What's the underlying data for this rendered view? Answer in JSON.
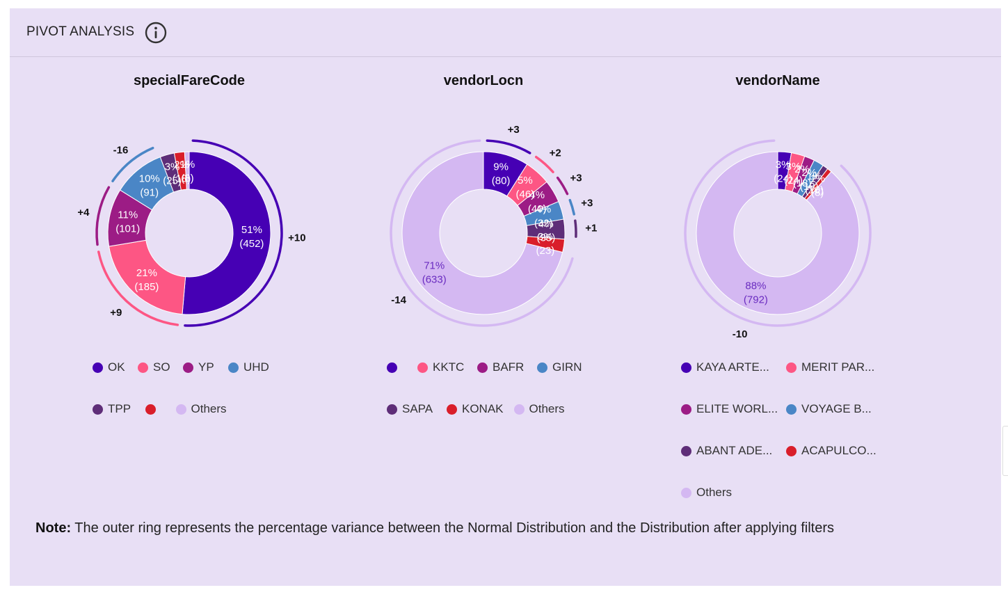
{
  "header": {
    "title": "PIVOT ANALYSIS",
    "info_icon": "info-circle-icon"
  },
  "colors": {
    "panel_bg": "#e8dff5",
    "others": "#d4b8f2",
    "ok": "#4600b4",
    "so": "#fd5684",
    "yp": "#9c1c85",
    "uhd": "#4a86c6",
    "tpp": "#5e2d78",
    "konak": "#d91e2a"
  },
  "chart_data": [
    {
      "type": "pie",
      "title": "specialFareCode",
      "slices": [
        {
          "label": "OK",
          "legend": "OK",
          "value": 452,
          "percent": "51%",
          "color": "#4600b4",
          "text_color": "#ffffff"
        },
        {
          "label": "SO",
          "legend": "SO",
          "value": 185,
          "percent": "21%",
          "color": "#fd5684",
          "text_color": "#ffffff"
        },
        {
          "label": "YP",
          "legend": "YP",
          "value": 101,
          "percent": "11%",
          "color": "#9c1c85",
          "text_color": "#ffffff"
        },
        {
          "label": "UHD",
          "legend": "UHD",
          "value": 91,
          "percent": "10%",
          "color": "#4a86c6",
          "text_color": "#ffffff"
        },
        {
          "label": "TPP",
          "legend": "TPP",
          "value": 25,
          "percent": "3%",
          "color": "#5e2d78",
          "text_color": "#ffffff"
        },
        {
          "label": "",
          "legend": "",
          "value": 18,
          "percent": "2%",
          "color": "#d91e2a",
          "text_color": "#ffffff"
        },
        {
          "label": "Others",
          "legend": "Others",
          "value": 8,
          "percent": "1%",
          "color": "#d4b8f2",
          "text_color": "#ffffff"
        }
      ],
      "variance": [
        {
          "slice": 0,
          "label": "+10"
        },
        {
          "slice": 1,
          "label": "+9"
        },
        {
          "slice": 2,
          "label": "+4"
        },
        {
          "slice": 3,
          "label": "-16"
        }
      ]
    },
    {
      "type": "pie",
      "title": "vendorLocn",
      "slices": [
        {
          "label": "",
          "legend": "",
          "value": 80,
          "percent": "9%",
          "color": "#4600b4",
          "text_color": "#ffffff"
        },
        {
          "label": "KKTC",
          "legend": "KKTC",
          "value": 46,
          "percent": "5%",
          "color": "#fd5684",
          "text_color": "#ffffff"
        },
        {
          "label": "BAFR",
          "legend": "BAFR",
          "value": 40,
          "percent": "4%",
          "color": "#9c1c85",
          "text_color": "#ffffff"
        },
        {
          "label": "GIRN",
          "legend": "GIRN",
          "value": 32,
          "percent": "4%",
          "color": "#4a86c6",
          "text_color": "#ffffff"
        },
        {
          "label": "SAPA",
          "legend": "SAPA",
          "value": 35,
          "percent": "4%",
          "color": "#5e2d78",
          "text_color": "#ffffff"
        },
        {
          "label": "KONAK",
          "legend": "KONAK",
          "value": 23,
          "percent": "3%",
          "color": "#d91e2a",
          "text_color": "#ffffff"
        },
        {
          "label": "Others",
          "legend": "Others",
          "value": 633,
          "percent": "71%",
          "color": "#d4b8f2",
          "text_color": "#6a2cc0"
        }
      ],
      "variance": [
        {
          "slice": 0,
          "label": "+3"
        },
        {
          "slice": 1,
          "label": "+2"
        },
        {
          "slice": 2,
          "label": "+3"
        },
        {
          "slice": 3,
          "label": "+3"
        },
        {
          "slice": 4,
          "label": "+1"
        },
        {
          "slice": 6,
          "label": "-14"
        }
      ]
    },
    {
      "type": "pie",
      "title": "vendorName",
      "slices": [
        {
          "label": "KAYA ARTE...",
          "legend": "KAYA ARTE...",
          "value": 24,
          "percent": "3%",
          "color": "#4600b4",
          "text_color": "#ffffff"
        },
        {
          "label": "MERIT PAR...",
          "legend": "MERIT PAR...",
          "value": 24,
          "percent": "3%",
          "color": "#fd5684",
          "text_color": "#ffffff"
        },
        {
          "label": "ELITE WORL...",
          "legend": "ELITE WORL...",
          "value": 18,
          "percent": "2%",
          "color": "#9c1c85",
          "text_color": "#ffffff"
        },
        {
          "label": "VOYAGE B...",
          "legend": "VOYAGE B...",
          "value": 18,
          "percent": "2%",
          "color": "#4a86c6",
          "text_color": "#ffffff"
        },
        {
          "label": "ABANT ADE...",
          "legend": "ABANT ADE...",
          "value": 10,
          "percent": "1%",
          "color": "#5e2d78",
          "text_color": "#ffffff"
        },
        {
          "label": "ACAPULCO...",
          "legend": "ACAPULCO...",
          "value": 8,
          "percent": "1%",
          "color": "#d91e2a",
          "text_color": "#ffffff"
        },
        {
          "label": "Others",
          "legend": "Others",
          "value": 792,
          "percent": "88%",
          "color": "#d4b8f2",
          "text_color": "#6a2cc0"
        }
      ],
      "variance": [
        {
          "slice": 6,
          "label": "-10"
        }
      ]
    }
  ],
  "note": {
    "label": "Note:",
    "text": " The outer ring represents the percentage variance between the Normal Distribution and the Distribution after applying filters"
  }
}
